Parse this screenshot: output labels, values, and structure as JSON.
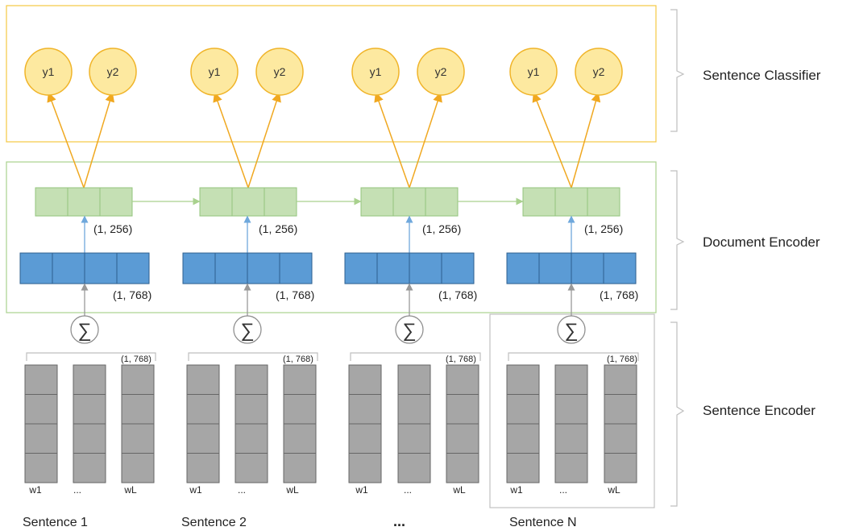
{
  "sections": {
    "classifier": "Sentence Classifier",
    "document": "Document Encoder",
    "sentence": "Sentence Encoder"
  },
  "columns": [
    {
      "label": "Sentence 1",
      "y_nodes": [
        "y1",
        "y2"
      ],
      "doc_dim": "(1, 256)",
      "sent_dim": "(1, 768)",
      "tok_dim": "(1, 768)",
      "words": [
        "w1",
        "...",
        "wL"
      ],
      "sum": "∑"
    },
    {
      "label": "Sentence 2",
      "y_nodes": [
        "y1",
        "y2"
      ],
      "doc_dim": "(1, 256)",
      "sent_dim": "(1, 768)",
      "tok_dim": "(1, 768)",
      "words": [
        "w1",
        "...",
        "wL"
      ],
      "sum": "∑"
    },
    {
      "label": "...",
      "y_nodes": [
        "y1",
        "y2"
      ],
      "doc_dim": "(1, 256)",
      "sent_dim": "(1, 768)",
      "tok_dim": "(1, 768)",
      "words": [
        "w1",
        "...",
        "wL"
      ],
      "sum": "∑"
    },
    {
      "label": "Sentence N",
      "y_nodes": [
        "y1",
        "y2"
      ],
      "doc_dim": "(1, 256)",
      "sent_dim": "(1, 768)",
      "tok_dim": "(1, 768)",
      "words": [
        "w1",
        "...",
        "wL"
      ],
      "sum": "∑"
    }
  ],
  "colors": {
    "classifier_border": "#f5c842",
    "node_fill": "#fde9a0",
    "node_stroke": "#f0b429",
    "arrow_orange": "#f0a820",
    "doc_border": "#a9d18e",
    "green_fill": "#c5e0b4",
    "green_stroke": "#93c47d",
    "blue_fill": "#5b9bd5",
    "blue_stroke": "#2e5f8f",
    "gray_fill": "#a6a6a6",
    "gray_stroke": "#666666",
    "arrow_blue": "#6fa8dc",
    "arrow_gray": "#999999",
    "sentN_border": "#c0c0c0"
  }
}
